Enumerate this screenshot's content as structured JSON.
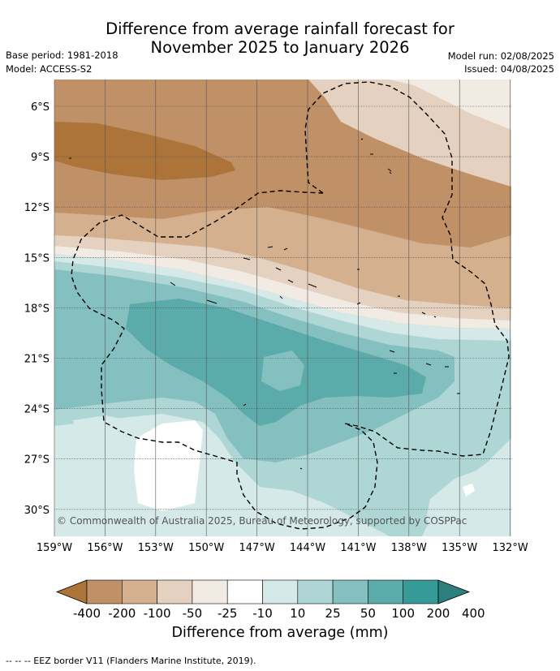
{
  "title": {
    "line1": "Difference from average rainfall forecast for",
    "line2": "November 2025 to January 2026"
  },
  "meta": {
    "base_period": "Base period: 1981-2018",
    "model": "Model: ACCESS-S2",
    "model_run": "Model run: 02/08/2025",
    "issued": "Issued: 04/08/2025"
  },
  "map": {
    "lat_labels": [
      "6°S",
      "9°S",
      "12°S",
      "15°S",
      "18°S",
      "21°S",
      "24°S",
      "27°S",
      "30°S"
    ],
    "lon_labels": [
      "159°W",
      "156°W",
      "153°W",
      "150°W",
      "147°W",
      "144°W",
      "141°W",
      "138°W",
      "135°W",
      "132°W"
    ],
    "copyright": "© Commonwealth of Australia 2025, Bureau of Meteorology, supported by COSPPac",
    "eez_border": "dashed"
  },
  "colorbar": {
    "labels": [
      "-400",
      "-200",
      "-100",
      "-50",
      "-25",
      "-10",
      "10",
      "25",
      "50",
      "100",
      "200",
      "400"
    ],
    "colors": [
      "#ad743a",
      "#c09066",
      "#d4b08e",
      "#e5d1bf",
      "#f2ebe4",
      "#ffffff",
      "#d5e9e8",
      "#add6d5",
      "#84c0bf",
      "#5aabaa",
      "#359a98",
      "#2c7f7d"
    ],
    "title": "Difference from average (mm)"
  },
  "footnote": "--  --  -- EEZ border V11 (Flanders Marine Institute, 2019)."
}
